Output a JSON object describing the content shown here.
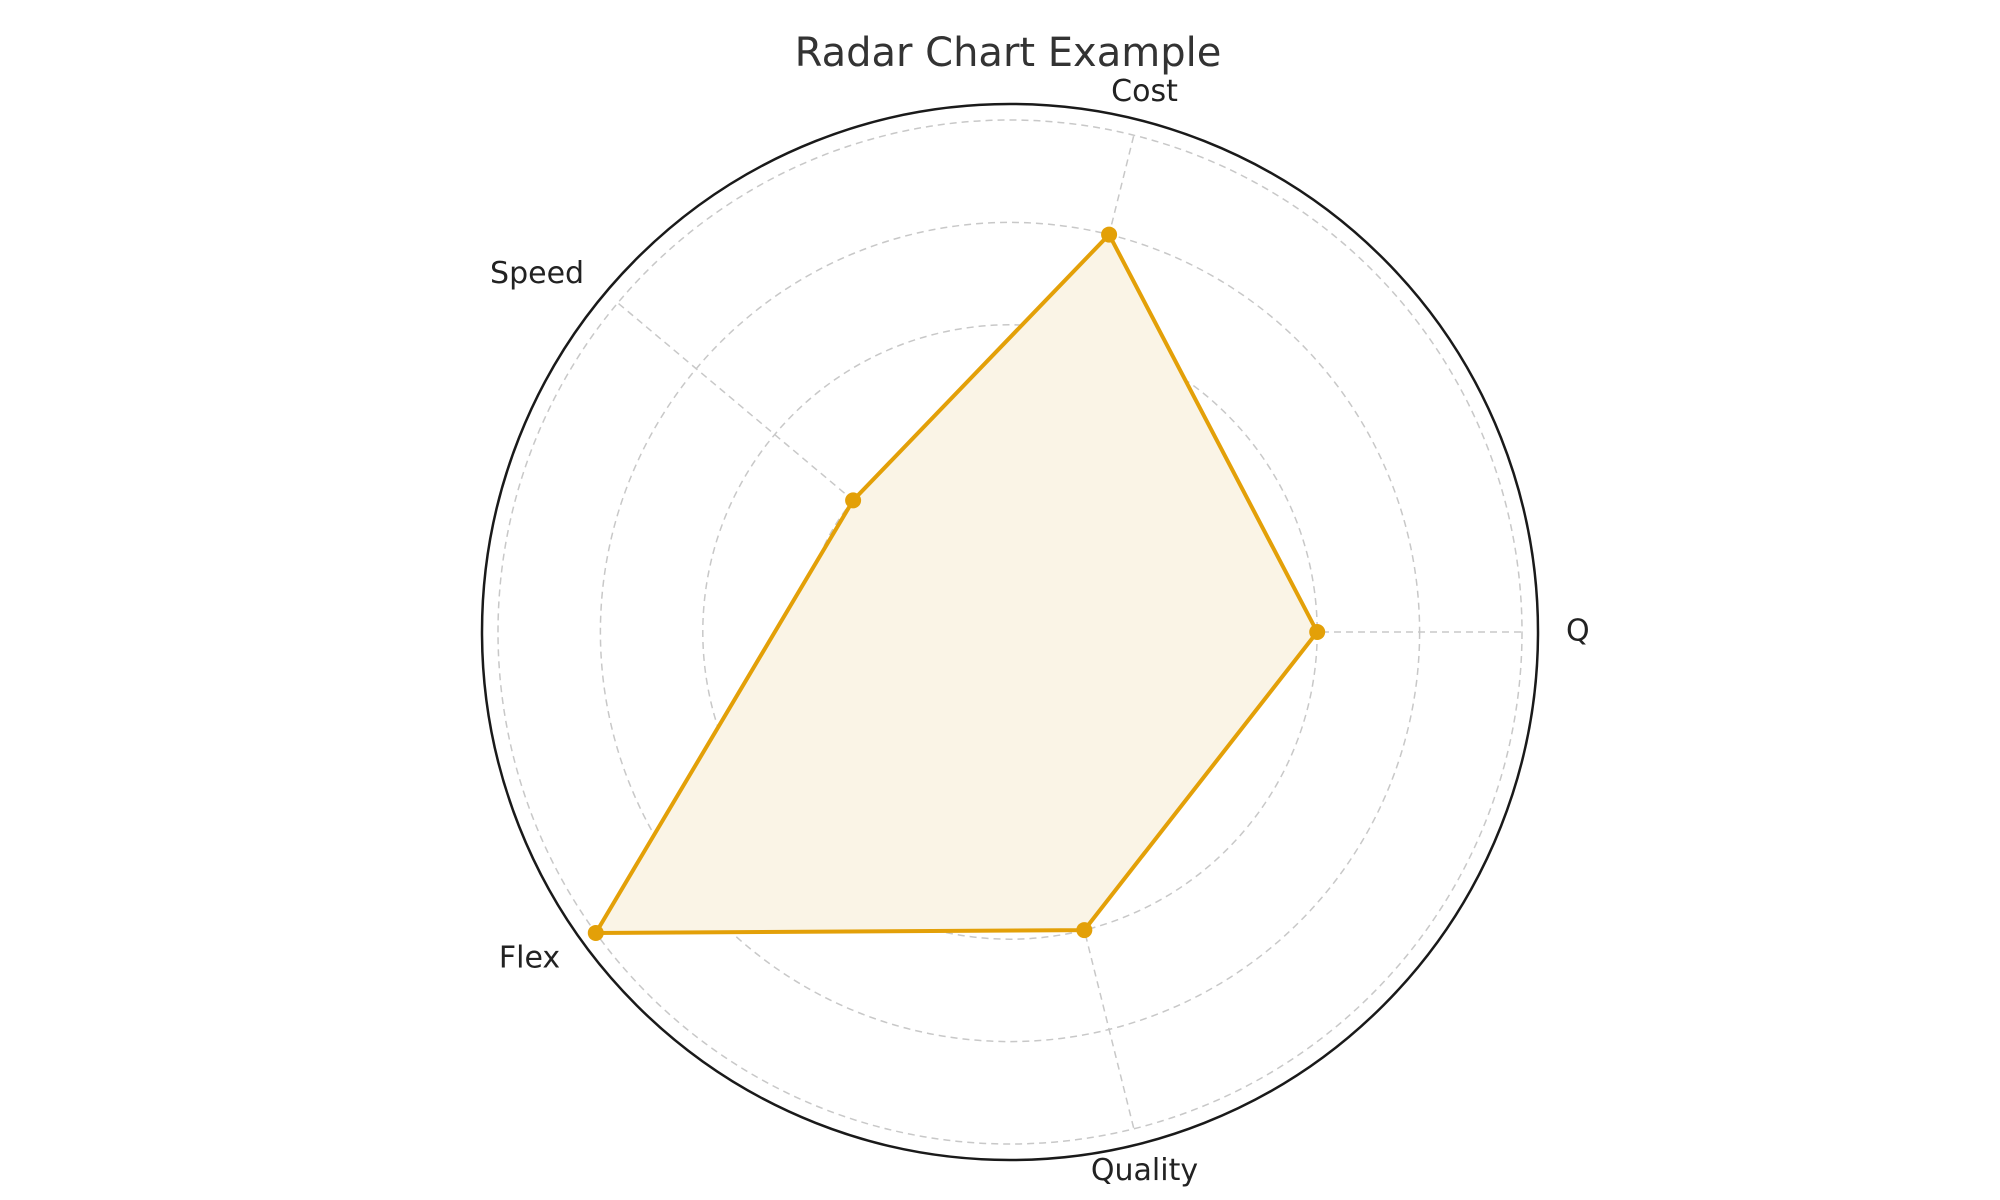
{
  "chart_data": {
    "type": "radar",
    "title": "Radar Chart Example",
    "categories": [
      "Q",
      "Cost",
      "Speed",
      "Flex",
      "Quality"
    ],
    "series": [
      {
        "values": [
          3,
          4,
          2,
          5,
          3
        ]
      }
    ],
    "rlim": [
      0,
      5
    ],
    "grid": true,
    "legend": "none"
  },
  "colors": {
    "series_line": "#e3a008",
    "series_fill": "#faf4e6"
  }
}
